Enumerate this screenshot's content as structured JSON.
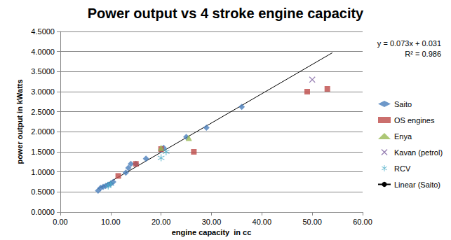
{
  "chart_data": {
    "type": "scatter",
    "title": "Power output vs 4 stroke engine capacity",
    "x_label": "engine capacity  in cc",
    "y_label": "power output in kWatts",
    "annotations": [
      "y = 0.073x + 0.031",
      "R² = 0.986"
    ],
    "series": [
      {
        "name": "Saito",
        "color": "#4a7ebb",
        "marker": "diamond",
        "x": [
          7.5,
          8,
          8.5,
          9,
          9.5,
          10,
          10.5,
          13,
          13.5,
          14,
          15,
          17,
          20,
          20.5,
          25,
          29,
          36
        ],
        "values": [
          0.53,
          0.6,
          0.63,
          0.65,
          0.68,
          0.7,
          0.75,
          0.98,
          1.1,
          1.2,
          1.2,
          1.33,
          1.55,
          1.6,
          1.87,
          2.1,
          2.62
        ]
      },
      {
        "name": "OS engines",
        "color": "#be4b48",
        "marker": "square",
        "x": [
          11.5,
          15,
          20,
          26.5,
          49,
          53
        ],
        "values": [
          0.9,
          1.2,
          1.57,
          1.5,
          3.0,
          3.07
        ]
      },
      {
        "name": "Enya",
        "color": "#98b954",
        "marker": "triangle",
        "x": [
          20,
          25.5
        ],
        "values": [
          1.6,
          1.85
        ]
      },
      {
        "name": "Kavan (petrol)",
        "color": "#7d60a0",
        "marker": "x",
        "x": [
          50
        ],
        "values": [
          3.3
        ]
      },
      {
        "name": "RCV",
        "color": "#46aac5",
        "marker": "asterisk",
        "x": [
          9.5,
          10,
          20,
          21
        ],
        "values": [
          0.65,
          0.7,
          1.35,
          1.5
        ]
      },
      {
        "name": "Linear (Saito)",
        "type": "line",
        "color": "#000000",
        "marker": "none",
        "x": [
          7.4,
          54
        ],
        "values": [
          0.57,
          3.97
        ]
      }
    ],
    "xlim": [
      0,
      60
    ],
    "xticks": [
      {
        "value": 0,
        "label": "0.00"
      },
      {
        "value": 10,
        "label": "10.00"
      },
      {
        "value": 20,
        "label": "20.00"
      },
      {
        "value": 30,
        "label": "30.00"
      },
      {
        "value": 40,
        "label": "40.00"
      },
      {
        "value": 50,
        "label": "50.00"
      },
      {
        "value": 60,
        "label": "60.00"
      }
    ],
    "ylim": [
      0,
      4.5
    ],
    "yticks": [
      {
        "value": 0,
        "label": "0.0000"
      },
      {
        "value": 0.5,
        "label": "0.5000"
      },
      {
        "value": 1,
        "label": "1.0000"
      },
      {
        "value": 1.5,
        "label": "1.5000"
      },
      {
        "value": 2,
        "label": "2.0000"
      },
      {
        "value": 2.5,
        "label": "2.5000"
      },
      {
        "value": 3,
        "label": "3.0000"
      },
      {
        "value": 3.5,
        "label": "3.5000"
      },
      {
        "value": 4,
        "label": "4.0000"
      },
      {
        "value": 4.5,
        "label": "4.5000"
      }
    ],
    "grid": true,
    "legend": "right"
  }
}
